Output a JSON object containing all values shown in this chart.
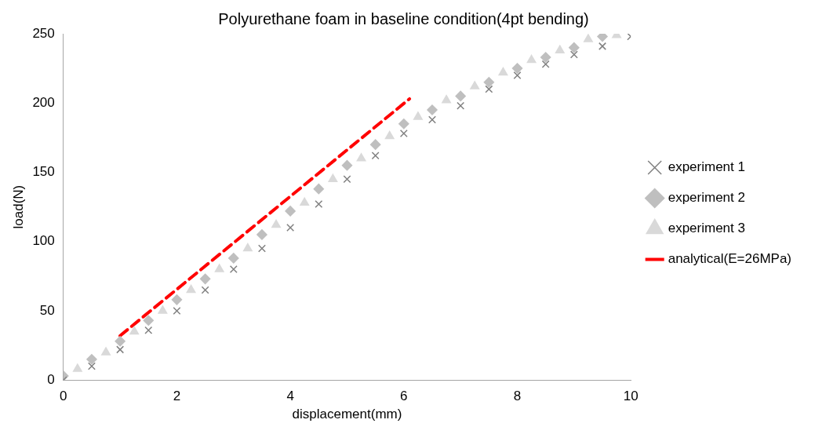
{
  "chart_data": {
    "type": "scatter",
    "title": "Polyurethane foam in baseline condition(4pt bending)",
    "xlabel": "displacement(mm)",
    "ylabel": "load(N)",
    "xlim": [
      0,
      10
    ],
    "xticks": [
      0,
      2,
      4,
      6,
      8,
      10
    ],
    "ylim": [
      0,
      250
    ],
    "yticks": [
      0,
      50,
      100,
      150,
      200,
      250
    ],
    "grid": false,
    "legend": "right",
    "series": [
      {
        "name": "experiment 1",
        "type": "scatter",
        "marker": "cross",
        "color": "#808080",
        "x": [
          0,
          0.5,
          1,
          1.5,
          2,
          2.5,
          3,
          3.5,
          4,
          4.5,
          5,
          5.5,
          6,
          6.5,
          7,
          7.5,
          8,
          8.5,
          9,
          9.5,
          10
        ],
        "values": [
          0,
          10,
          22,
          36,
          50,
          65,
          80,
          95,
          110,
          127,
          145,
          162,
          178,
          188,
          198,
          210,
          220,
          228,
          235,
          241,
          248
        ]
      },
      {
        "name": "experiment 2",
        "type": "scatter",
        "marker": "diamond",
        "color": "#bfbfbf",
        "x": [
          0,
          0.5,
          1,
          1.5,
          2,
          2.5,
          3,
          3.5,
          4,
          4.5,
          5,
          5.5,
          6,
          6.5,
          7,
          7.5,
          8,
          8.5,
          9,
          9.5
        ],
        "values": [
          3,
          15,
          28,
          43,
          58,
          73,
          88,
          105,
          122,
          138,
          155,
          170,
          185,
          195,
          205,
          215,
          225,
          233,
          240,
          248
        ]
      },
      {
        "name": "experiment 3",
        "type": "scatter",
        "marker": "triangle",
        "color": "#d9d9d9",
        "x": [
          0.25,
          0.75,
          1.25,
          1.75,
          2.25,
          2.75,
          3.25,
          3.75,
          4.25,
          4.75,
          5.25,
          5.75,
          6.25,
          6.75,
          7.25,
          7.75,
          8.25,
          8.75,
          9.25,
          9.75
        ],
        "values": [
          8,
          20,
          35,
          50,
          65,
          80,
          95,
          112,
          128,
          145,
          160,
          176,
          190,
          202,
          212,
          222,
          231,
          238,
          246,
          249
        ]
      },
      {
        "name": "analytical(E=26MPa)",
        "type": "line",
        "marker": "none",
        "line_style": "dashed",
        "color": "#ff0000",
        "x": [
          1,
          6.1
        ],
        "values": [
          32,
          203
        ]
      }
    ]
  }
}
